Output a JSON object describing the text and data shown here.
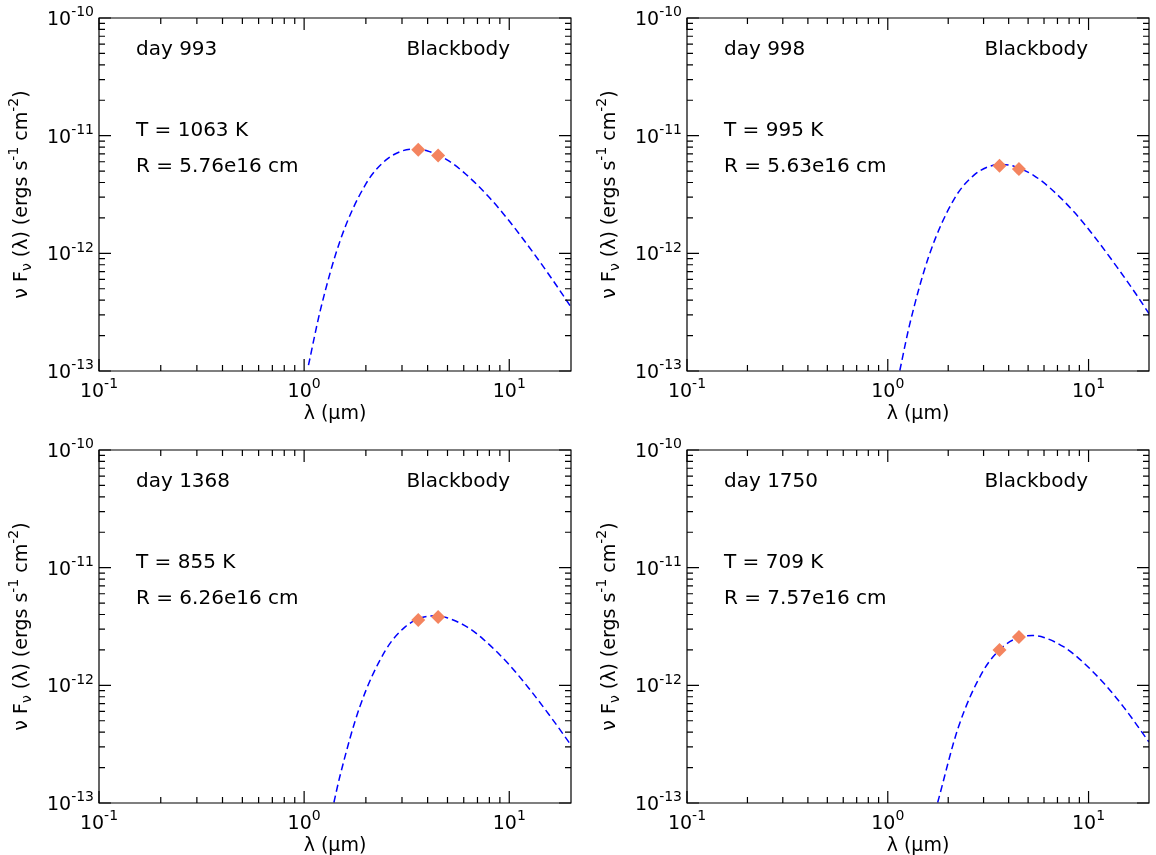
{
  "chart_data": [
    {
      "type": "line",
      "xlabel": "λ (μm)",
      "ylabel": "ν F$_{ν}$ (λ) (ergs s$^{-1}$ cm$^{-2}$)",
      "annotations": [
        "day 993",
        "Blackbody",
        "T = 1063 K",
        "R = 5.76e16 cm"
      ],
      "log": "xy",
      "xlim": [
        0.1,
        20
      ],
      "ylim": [
        1e-13,
        1e-10
      ],
      "xticks": [
        {
          "value": 0.1,
          "label": "10$^{-1}$"
        },
        {
          "value": 0.2,
          "label": null
        },
        {
          "value": 0.3,
          "label": null
        },
        {
          "value": 0.4,
          "label": null
        },
        {
          "value": 0.5,
          "label": null
        },
        {
          "value": 0.6,
          "label": null
        },
        {
          "value": 0.7,
          "label": null
        },
        {
          "value": 0.8,
          "label": null
        },
        {
          "value": 0.9,
          "label": null
        },
        {
          "value": 1,
          "label": "10$^{0}$"
        },
        {
          "value": 2,
          "label": null
        },
        {
          "value": 3,
          "label": null
        },
        {
          "value": 4,
          "label": null
        },
        {
          "value": 5,
          "label": null
        },
        {
          "value": 6,
          "label": null
        },
        {
          "value": 7,
          "label": null
        },
        {
          "value": 8,
          "label": null
        },
        {
          "value": 9,
          "label": null
        },
        {
          "value": 10,
          "label": "10$^{1}$"
        }
      ],
      "yticks": [
        {
          "value": 1e-13,
          "label": "10$^{-13}$"
        },
        {
          "value": 2e-13,
          "label": null
        },
        {
          "value": 3e-13,
          "label": null
        },
        {
          "value": 4e-13,
          "label": null
        },
        {
          "value": 5e-13,
          "label": null
        },
        {
          "value": 6e-13,
          "label": null
        },
        {
          "value": 7e-13,
          "label": null
        },
        {
          "value": 8e-13,
          "label": null
        },
        {
          "value": 9e-13,
          "label": null
        },
        {
          "value": 1e-12,
          "label": "10$^{-12}$"
        },
        {
          "value": 2e-12,
          "label": null
        },
        {
          "value": 3e-12,
          "label": null
        },
        {
          "value": 4e-12,
          "label": null
        },
        {
          "value": 5e-12,
          "label": null
        },
        {
          "value": 6e-12,
          "label": null
        },
        {
          "value": 7e-12,
          "label": null
        },
        {
          "value": 8e-12,
          "label": null
        },
        {
          "value": 9e-12,
          "label": null
        },
        {
          "value": 1e-11,
          "label": "10$^{-11}$"
        },
        {
          "value": 2e-11,
          "label": null
        },
        {
          "value": 3e-11,
          "label": null
        },
        {
          "value": 4e-11,
          "label": null
        },
        {
          "value": 5e-11,
          "label": null
        },
        {
          "value": 6e-11,
          "label": null
        },
        {
          "value": 7e-11,
          "label": null
        },
        {
          "value": 8e-11,
          "label": null
        },
        {
          "value": 9e-11,
          "label": null
        },
        {
          "value": 1e-10,
          "label": "10$^{-10}$"
        }
      ],
      "series": [
        {
          "type": "line",
          "color": "#0000ff",
          "line_style": "dashed",
          "marker": "none",
          "x": [
            1.05,
            1.2,
            1.5,
            2,
            2.5,
            3,
            3.5,
            4,
            5,
            6,
            8,
            10,
            13,
            16,
            20
          ],
          "values": [
            1.12e-13,
            3.29e-13,
            1.29e-12,
            3.89e-12,
            6.19e-12,
            7.41e-12,
            7.7e-12,
            7.41e-12,
            6.19e-12,
            4.88e-12,
            2.98e-12,
            1.88e-12,
            1.03e-12,
            6.2e-13,
            3.5e-13
          ]
        },
        {
          "type": "scatter",
          "color": "#f4845f",
          "marker": "diamond",
          "x": [
            3.6,
            4.5
          ],
          "values": [
            7.6e-12,
            6.8e-12
          ]
        }
      ]
    },
    {
      "type": "line",
      "xlabel": "λ (μm)",
      "ylabel": "ν F$_{ν}$ (λ) (ergs s$^{-1}$ cm$^{-2}$)",
      "annotations": [
        "day 998",
        "Blackbody",
        "T = 995 K",
        "R = 5.63e16 cm"
      ],
      "log": "xy",
      "xlim": [
        0.1,
        20
      ],
      "ylim": [
        1e-13,
        1e-10
      ],
      "xticks": [
        {
          "value": 0.1,
          "label": "10$^{-1}$"
        },
        {
          "value": 0.2,
          "label": null
        },
        {
          "value": 0.3,
          "label": null
        },
        {
          "value": 0.4,
          "label": null
        },
        {
          "value": 0.5,
          "label": null
        },
        {
          "value": 0.6,
          "label": null
        },
        {
          "value": 0.7,
          "label": null
        },
        {
          "value": 0.8,
          "label": null
        },
        {
          "value": 0.9,
          "label": null
        },
        {
          "value": 1,
          "label": "10$^{0}$"
        },
        {
          "value": 2,
          "label": null
        },
        {
          "value": 3,
          "label": null
        },
        {
          "value": 4,
          "label": null
        },
        {
          "value": 5,
          "label": null
        },
        {
          "value": 6,
          "label": null
        },
        {
          "value": 7,
          "label": null
        },
        {
          "value": 8,
          "label": null
        },
        {
          "value": 9,
          "label": null
        },
        {
          "value": 10,
          "label": "10$^{1}$"
        }
      ],
      "yticks": [
        {
          "value": 1e-13,
          "label": "10$^{-13}$"
        },
        {
          "value": 2e-13,
          "label": null
        },
        {
          "value": 3e-13,
          "label": null
        },
        {
          "value": 4e-13,
          "label": null
        },
        {
          "value": 5e-13,
          "label": null
        },
        {
          "value": 6e-13,
          "label": null
        },
        {
          "value": 7e-13,
          "label": null
        },
        {
          "value": 8e-13,
          "label": null
        },
        {
          "value": 9e-13,
          "label": null
        },
        {
          "value": 1e-12,
          "label": "10$^{-12}$"
        },
        {
          "value": 2e-12,
          "label": null
        },
        {
          "value": 3e-12,
          "label": null
        },
        {
          "value": 4e-12,
          "label": null
        },
        {
          "value": 5e-12,
          "label": null
        },
        {
          "value": 6e-12,
          "label": null
        },
        {
          "value": 7e-12,
          "label": null
        },
        {
          "value": 8e-12,
          "label": null
        },
        {
          "value": 9e-12,
          "label": null
        },
        {
          "value": 1e-11,
          "label": "10$^{-11}$"
        },
        {
          "value": 2e-11,
          "label": null
        },
        {
          "value": 3e-11,
          "label": null
        },
        {
          "value": 4e-11,
          "label": null
        },
        {
          "value": 5e-11,
          "label": null
        },
        {
          "value": 6e-11,
          "label": null
        },
        {
          "value": 7e-11,
          "label": null
        },
        {
          "value": 8e-11,
          "label": null
        },
        {
          "value": 9e-11,
          "label": null
        },
        {
          "value": 1e-10,
          "label": "10$^{-10}$"
        }
      ],
      "series": [
        {
          "type": "line",
          "color": "#0000ff",
          "line_style": "dashed",
          "marker": "none",
          "x": [
            1.148,
            1.282,
            1.603,
            2.137,
            2.671,
            3.205,
            3.739,
            4.273,
            5.342,
            6.41,
            8.546,
            10.68,
            13.89,
            17.09,
            20
          ],
          "values": [
            1.01e-13,
            2.44e-13,
            9.5e-13,
            2.88e-12,
            4.58e-12,
            5.48e-12,
            5.7e-12,
            5.48e-12,
            4.58e-12,
            3.61e-12,
            2.21e-12,
            1.39e-12,
            7.6e-13,
            4.6e-13,
            3.07e-13
          ]
        },
        {
          "type": "scatter",
          "color": "#f4845f",
          "marker": "diamond",
          "x": [
            3.6,
            4.5
          ],
          "values": [
            5.55e-12,
            5.2e-12
          ]
        }
      ]
    },
    {
      "type": "line",
      "xlabel": "λ (μm)",
      "ylabel": "ν F$_{ν}$ (λ) (ergs s$^{-1}$ cm$^{-2}$)",
      "annotations": [
        "day 1368",
        "Blackbody",
        "T = 855 K",
        "R = 6.26e16 cm"
      ],
      "log": "xy",
      "xlim": [
        0.1,
        20
      ],
      "ylim": [
        1e-13,
        1e-10
      ],
      "xticks": [
        {
          "value": 0.1,
          "label": "10$^{-1}$"
        },
        {
          "value": 0.2,
          "label": null
        },
        {
          "value": 0.3,
          "label": null
        },
        {
          "value": 0.4,
          "label": null
        },
        {
          "value": 0.5,
          "label": null
        },
        {
          "value": 0.6,
          "label": null
        },
        {
          "value": 0.7,
          "label": null
        },
        {
          "value": 0.8,
          "label": null
        },
        {
          "value": 0.9,
          "label": null
        },
        {
          "value": 1,
          "label": "10$^{0}$"
        },
        {
          "value": 2,
          "label": null
        },
        {
          "value": 3,
          "label": null
        },
        {
          "value": 4,
          "label": null
        },
        {
          "value": 5,
          "label": null
        },
        {
          "value": 6,
          "label": null
        },
        {
          "value": 7,
          "label": null
        },
        {
          "value": 8,
          "label": null
        },
        {
          "value": 9,
          "label": null
        },
        {
          "value": 10,
          "label": "10$^{1}$"
        }
      ],
      "yticks": [
        {
          "value": 1e-13,
          "label": "10$^{-13}$"
        },
        {
          "value": 2e-13,
          "label": null
        },
        {
          "value": 3e-13,
          "label": null
        },
        {
          "value": 4e-13,
          "label": null
        },
        {
          "value": 5e-13,
          "label": null
        },
        {
          "value": 6e-13,
          "label": null
        },
        {
          "value": 7e-13,
          "label": null
        },
        {
          "value": 8e-13,
          "label": null
        },
        {
          "value": 9e-13,
          "label": null
        },
        {
          "value": 1e-12,
          "label": "10$^{-12}$"
        },
        {
          "value": 2e-12,
          "label": null
        },
        {
          "value": 3e-12,
          "label": null
        },
        {
          "value": 4e-12,
          "label": null
        },
        {
          "value": 5e-12,
          "label": null
        },
        {
          "value": 6e-12,
          "label": null
        },
        {
          "value": 7e-12,
          "label": null
        },
        {
          "value": 8e-12,
          "label": null
        },
        {
          "value": 9e-12,
          "label": null
        },
        {
          "value": 1e-11,
          "label": "10$^{-11}$"
        },
        {
          "value": 2e-11,
          "label": null
        },
        {
          "value": 3e-11,
          "label": null
        },
        {
          "value": 4e-11,
          "label": null
        },
        {
          "value": 5e-11,
          "label": null
        },
        {
          "value": 6e-11,
          "label": null
        },
        {
          "value": 7e-11,
          "label": null
        },
        {
          "value": 8e-11,
          "label": null
        },
        {
          "value": 9e-11,
          "label": null
        },
        {
          "value": 1e-10,
          "label": "10$^{-10}$"
        }
      ],
      "series": [
        {
          "type": "line",
          "color": "#0000ff",
          "line_style": "dashed",
          "marker": "none",
          "x": [
            1.397,
            1.492,
            1.865,
            2.487,
            3.109,
            3.73,
            4.352,
            4.973,
            6.217,
            7.46,
            9.947,
            12.43,
            16.17,
            20
          ],
          "values": [
            1.01e-13,
            1.67e-13,
            6.52e-13,
            1.97e-12,
            3.14e-12,
            3.75e-12,
            3.9e-12,
            3.75e-12,
            3.14e-12,
            2.47e-12,
            1.51e-12,
            9.5e-13,
            5.2e-13,
            3.1e-13
          ]
        },
        {
          "type": "scatter",
          "color": "#f4845f",
          "marker": "diamond",
          "x": [
            3.6,
            4.5
          ],
          "values": [
            3.6e-12,
            3.8e-12
          ]
        }
      ]
    },
    {
      "type": "line",
      "xlabel": "λ (μm)",
      "ylabel": "ν F$_{ν}$ (λ) (ergs s$^{-1}$ cm$^{-2}$)",
      "annotations": [
        "day 1750",
        "Blackbody",
        "T = 709 K",
        "R = 7.57e16 cm"
      ],
      "log": "xy",
      "xlim": [
        0.1,
        20
      ],
      "ylim": [
        1e-13,
        1e-10
      ],
      "xticks": [
        {
          "value": 0.1,
          "label": "10$^{-1}$"
        },
        {
          "value": 0.2,
          "label": null
        },
        {
          "value": 0.3,
          "label": null
        },
        {
          "value": 0.4,
          "label": null
        },
        {
          "value": 0.5,
          "label": null
        },
        {
          "value": 0.6,
          "label": null
        },
        {
          "value": 0.7,
          "label": null
        },
        {
          "value": 0.8,
          "label": null
        },
        {
          "value": 0.9,
          "label": null
        },
        {
          "value": 1,
          "label": "10$^{0}$"
        },
        {
          "value": 2,
          "label": null
        },
        {
          "value": 3,
          "label": null
        },
        {
          "value": 4,
          "label": null
        },
        {
          "value": 5,
          "label": null
        },
        {
          "value": 6,
          "label": null
        },
        {
          "value": 7,
          "label": null
        },
        {
          "value": 8,
          "label": null
        },
        {
          "value": 9,
          "label": null
        },
        {
          "value": 10,
          "label": "10$^{1}$"
        }
      ],
      "yticks": [
        {
          "value": 1e-13,
          "label": "10$^{-13}$"
        },
        {
          "value": 2e-13,
          "label": null
        },
        {
          "value": 3e-13,
          "label": null
        },
        {
          "value": 4e-13,
          "label": null
        },
        {
          "value": 5e-13,
          "label": null
        },
        {
          "value": 6e-13,
          "label": null
        },
        {
          "value": 7e-13,
          "label": null
        },
        {
          "value": 8e-13,
          "label": null
        },
        {
          "value": 9e-13,
          "label": null
        },
        {
          "value": 1e-12,
          "label": "10$^{-12}$"
        },
        {
          "value": 2e-12,
          "label": null
        },
        {
          "value": 3e-12,
          "label": null
        },
        {
          "value": 4e-12,
          "label": null
        },
        {
          "value": 5e-12,
          "label": null
        },
        {
          "value": 6e-12,
          "label": null
        },
        {
          "value": 7e-12,
          "label": null
        },
        {
          "value": 8e-12,
          "label": null
        },
        {
          "value": 9e-12,
          "label": null
        },
        {
          "value": 1e-11,
          "label": "10$^{-11}$"
        },
        {
          "value": 2e-11,
          "label": null
        },
        {
          "value": 3e-11,
          "label": null
        },
        {
          "value": 4e-11,
          "label": null
        },
        {
          "value": 5e-11,
          "label": null
        },
        {
          "value": 6e-11,
          "label": null
        },
        {
          "value": 7e-11,
          "label": null
        },
        {
          "value": 8e-11,
          "label": null
        },
        {
          "value": 9e-11,
          "label": null
        },
        {
          "value": 1e-10,
          "label": "10$^{-10}$"
        }
      ],
      "series": [
        {
          "type": "line",
          "color": "#0000ff",
          "line_style": "dashed",
          "marker": "none",
          "x": [
            1.772,
            2.249,
            2.998,
            3.748,
            4.497,
            5.247,
            5.996,
            7.495,
            8.994,
            11.99,
            14.99,
            20
          ],
          "values": [
            1.01e-13,
            4.43e-13,
            1.34e-12,
            2.13e-12,
            2.55e-12,
            2.65e-12,
            2.55e-12,
            2.13e-12,
            1.68e-12,
            1.03e-12,
            6.5e-13,
            3.3e-13
          ]
        },
        {
          "type": "scatter",
          "color": "#f4845f",
          "marker": "diamond",
          "x": [
            3.6,
            4.5
          ],
          "values": [
            2e-12,
            2.57e-12
          ]
        }
      ]
    }
  ]
}
